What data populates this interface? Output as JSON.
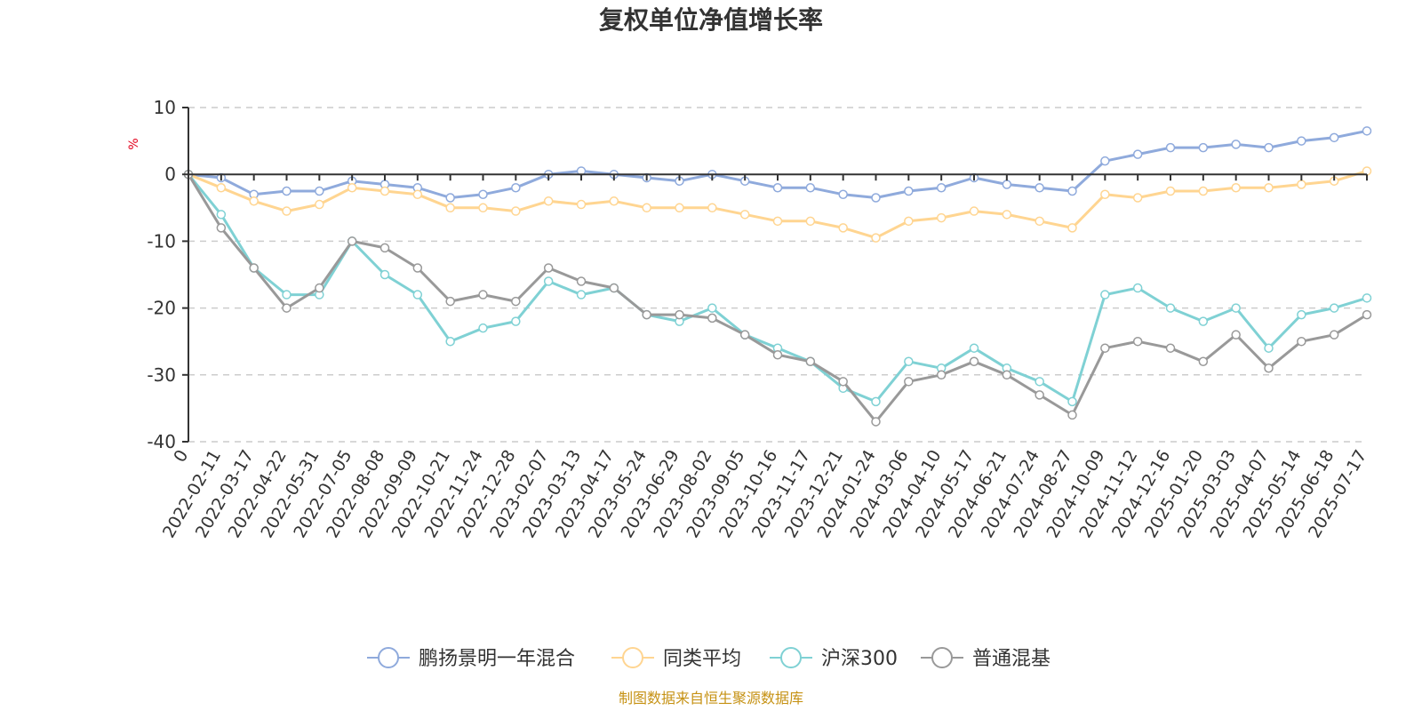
{
  "chart_data": {
    "type": "line",
    "title": "复权单位净值增长率",
    "ylabel": "%",
    "ylim": [
      -40,
      10
    ],
    "yticks": [
      10,
      0,
      -10,
      -20,
      -30,
      -40
    ],
    "grid": true,
    "legend_position": "bottom",
    "x_tick_labels": [
      "0",
      "2022-02-11",
      "2022-03-17",
      "2022-04-22",
      "2022-05-31",
      "2022-07-05",
      "2022-08-08",
      "2022-09-09",
      "2022-10-21",
      "2022-11-24",
      "2022-12-28",
      "2023-02-07",
      "2023-03-13",
      "2023-04-17",
      "2023-05-24",
      "2023-06-29",
      "2023-08-02",
      "2023-09-05",
      "2023-10-16",
      "2023-11-17",
      "2023-12-21",
      "2024-01-24",
      "2024-03-06",
      "2024-04-10",
      "2024-05-17",
      "2024-06-21",
      "2024-07-24",
      "2024-08-27",
      "2024-10-09",
      "2024-11-12",
      "2024-12-16",
      "2025-01-20",
      "2025-03-03",
      "2025-04-07",
      "2025-05-14",
      "2025-06-18",
      "2025-07-17"
    ],
    "series": [
      {
        "name": "鹏扬景明一年混合",
        "color": "#8faadc",
        "values": [
          0,
          -0.5,
          -3,
          -2.5,
          -2.5,
          -1,
          -1.5,
          -2,
          -3.5,
          -3,
          -2,
          0,
          0.5,
          0,
          -0.5,
          -1,
          0,
          -1,
          -2,
          -2,
          -3,
          -3.5,
          -2.5,
          -2,
          -0.5,
          -1.5,
          -2,
          -2.5,
          2,
          3,
          4,
          4,
          4.5,
          4,
          5,
          5.5,
          6.5
        ]
      },
      {
        "name": "同类平均",
        "color": "#ffd591",
        "values": [
          0,
          -2,
          -4,
          -5.5,
          -4.5,
          -2,
          -2.5,
          -3,
          -5,
          -5,
          -5.5,
          -4,
          -4.5,
          -4,
          -5,
          -5,
          -5,
          -6,
          -7,
          -7,
          -8,
          -9.5,
          -7,
          -6.5,
          -5.5,
          -6,
          -7,
          -8,
          -3,
          -3.5,
          -2.5,
          -2.5,
          -2,
          -2,
          -1.5,
          -1,
          0.5
        ]
      },
      {
        "name": "沪深300",
        "color": "#7fd1d4",
        "values": [
          0,
          -6,
          -14,
          -18,
          -18,
          -10,
          -15,
          -18,
          -25,
          -23,
          -22,
          -16,
          -18,
          -17,
          -21,
          -22,
          -20,
          -24,
          -26,
          -28,
          -32,
          -34,
          -28,
          -29,
          -26,
          -29,
          -31,
          -34,
          -18,
          -17,
          -20,
          -22,
          -20,
          -26,
          -21,
          -20,
          -18.5
        ]
      },
      {
        "name": "普通混基",
        "color": "#999999",
        "values": [
          0,
          -8,
          -14,
          -20,
          -17,
          -10,
          -11,
          -14,
          -19,
          -18,
          -19,
          -14,
          -16,
          -17,
          -21,
          -21,
          -21.5,
          -24,
          -27,
          -28,
          -31,
          -37,
          -31,
          -30,
          -28,
          -30,
          -33,
          -36,
          -26,
          -25,
          -26,
          -28,
          -24,
          -29,
          -25,
          -24,
          -21
        ]
      }
    ]
  },
  "source_note": "制图数据来自恒生聚源数据库"
}
